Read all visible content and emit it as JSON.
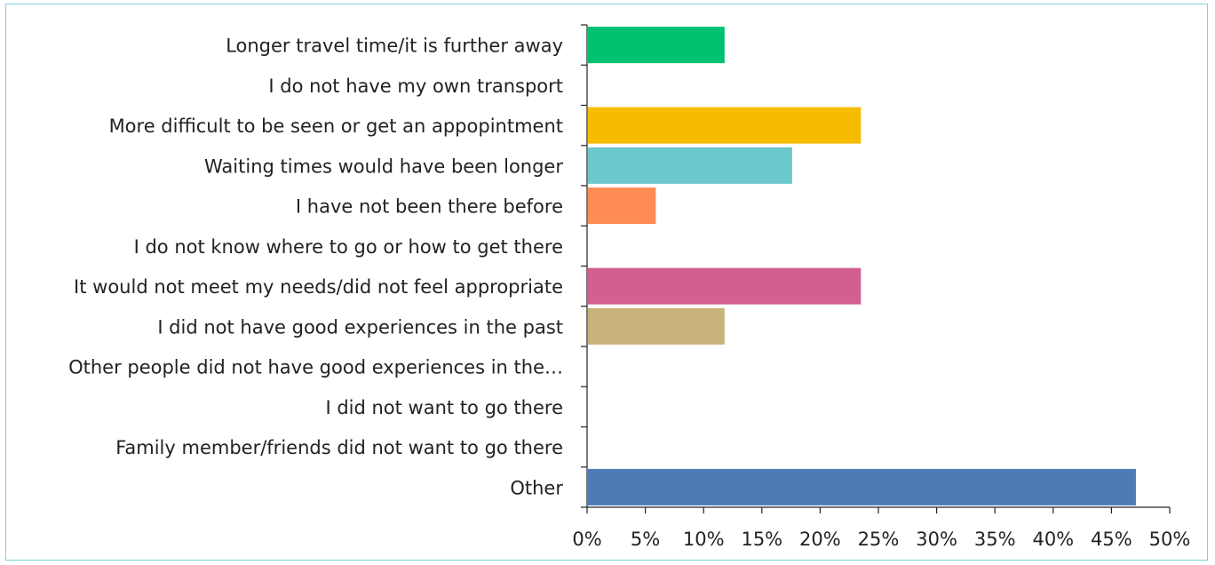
{
  "chart_data": {
    "type": "bar",
    "orientation": "horizontal",
    "categories": [
      "Longer travel time/it is further away",
      "I do not have my own transport",
      "More difficult to be seen or get an appopintment",
      "Waiting times would have been longer",
      "I have not been there before",
      "I do not know where to go or how to get there",
      "It would not meet my needs/did not feel appropriate",
      "I did not have good experiences in the past",
      "Other people did not have good experiences in the…",
      "I did not want to go there",
      "Family member/friends did not want to go there",
      "Other"
    ],
    "values": [
      11.8,
      0,
      23.5,
      17.6,
      5.9,
      0,
      23.5,
      11.8,
      0,
      0,
      0,
      47.1
    ],
    "colors": [
      "#00c170",
      "#00c170",
      "#f6bc00",
      "#6bc8cd",
      "#ff8c52",
      "#ff8c52",
      "#d35f8f",
      "#c8b47a",
      "#c8b47a",
      "#c8b47a",
      "#c8b47a",
      "#4e7bb5"
    ],
    "xlim": [
      0,
      50
    ],
    "xticks": [
      "0%",
      "5%",
      "10%",
      "15%",
      "20%",
      "25%",
      "30%",
      "35%",
      "40%",
      "45%",
      "50%"
    ],
    "grid": false,
    "legend": "none"
  }
}
